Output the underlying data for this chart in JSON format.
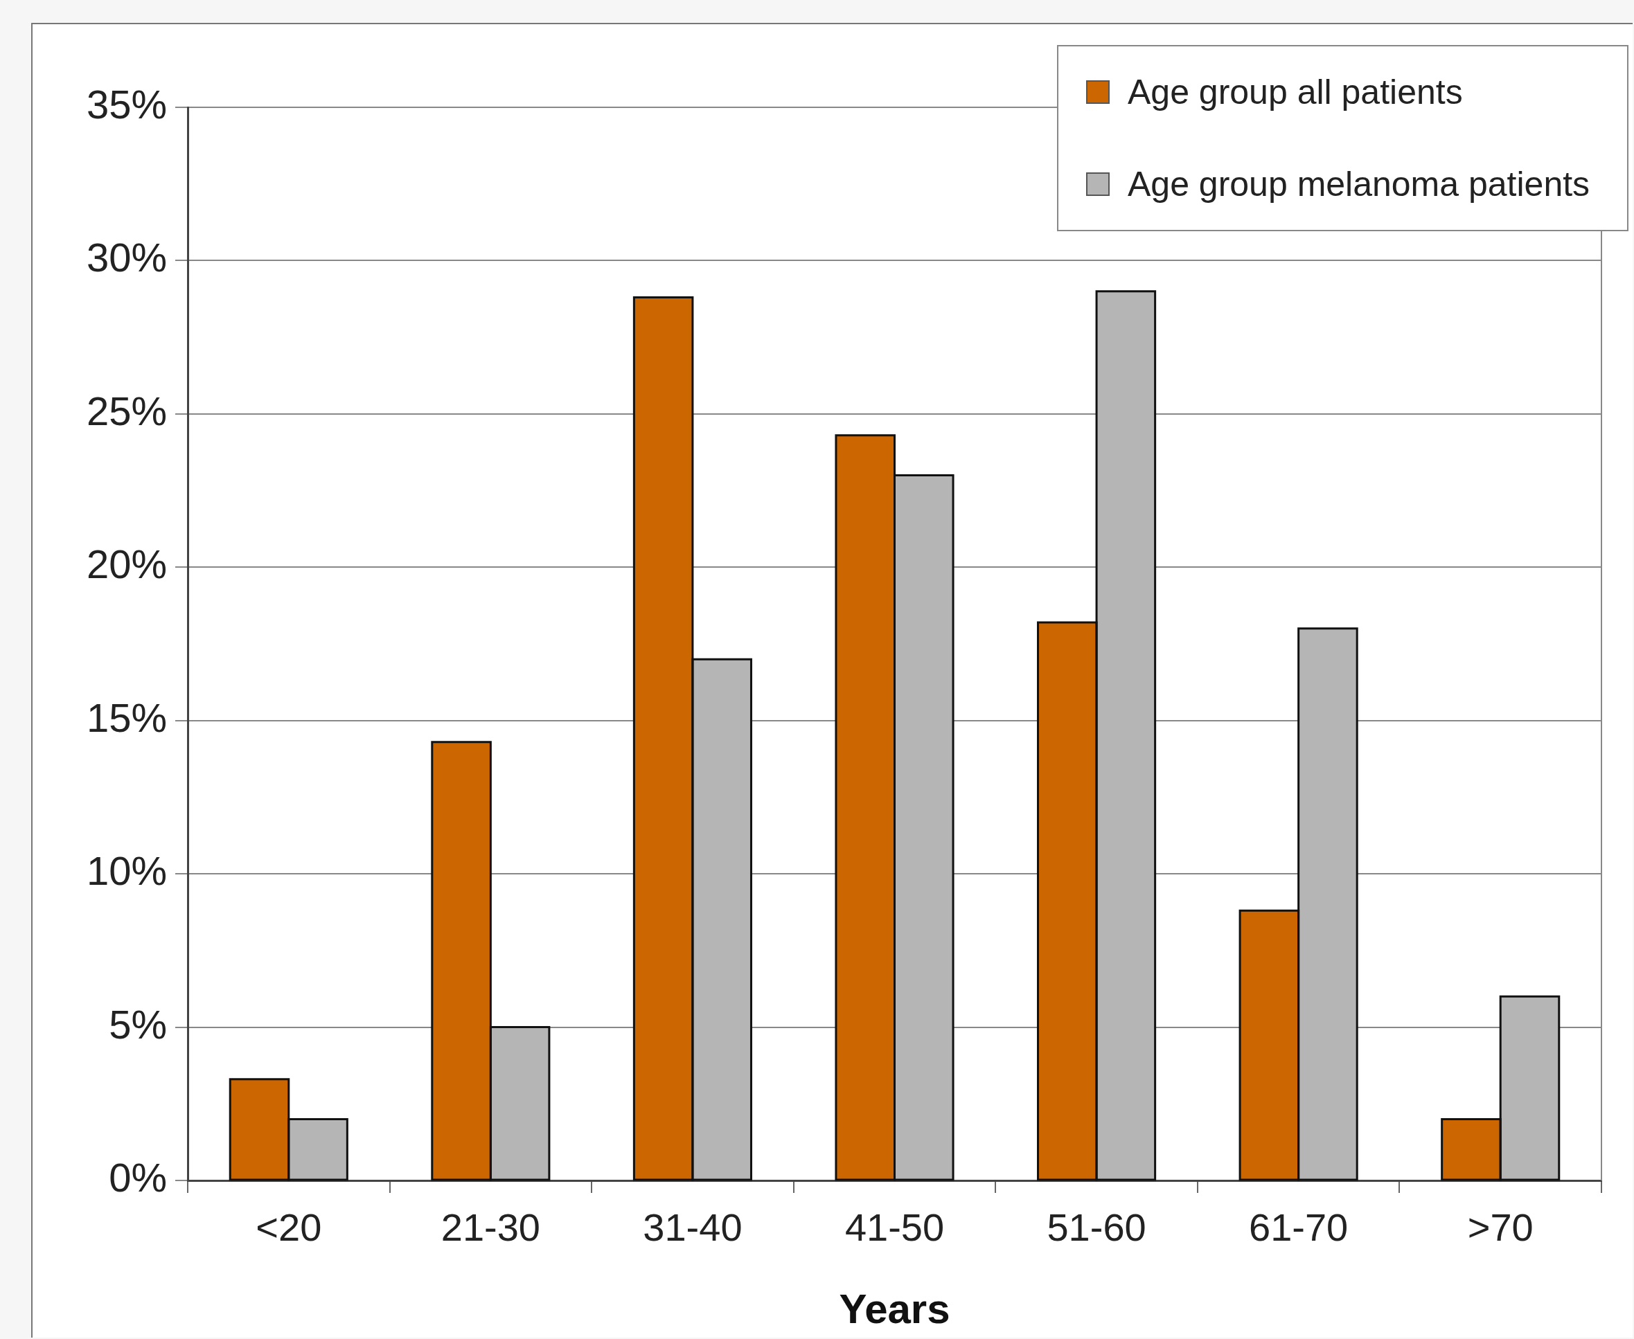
{
  "chart_data": {
    "type": "bar",
    "xlabel": "Years",
    "categories": [
      "<20",
      "21-30",
      "31-40",
      "41-50",
      "51-60",
      "61-70",
      ">70"
    ],
    "series": [
      {
        "name": "Age group all patients",
        "color": "#cc6600",
        "values": [
          3.3,
          14.3,
          28.8,
          24.3,
          18.2,
          8.8,
          2.0
        ]
      },
      {
        "name": "Age group melanoma patients",
        "color": "#b5b5b5",
        "values": [
          2,
          5,
          17,
          23,
          29,
          18,
          6
        ]
      }
    ],
    "ylim": [
      0,
      35
    ],
    "yticks": [
      {
        "value": 0,
        "label": "0%"
      },
      {
        "value": 5,
        "label": "5%"
      },
      {
        "value": 10,
        "label": "10%"
      },
      {
        "value": 15,
        "label": "15%"
      },
      {
        "value": 20,
        "label": "20%"
      },
      {
        "value": 25,
        "label": "25%"
      },
      {
        "value": 30,
        "label": "30%"
      },
      {
        "value": 35,
        "label": "35%"
      }
    ],
    "grid": "y",
    "legend": "top right"
  }
}
